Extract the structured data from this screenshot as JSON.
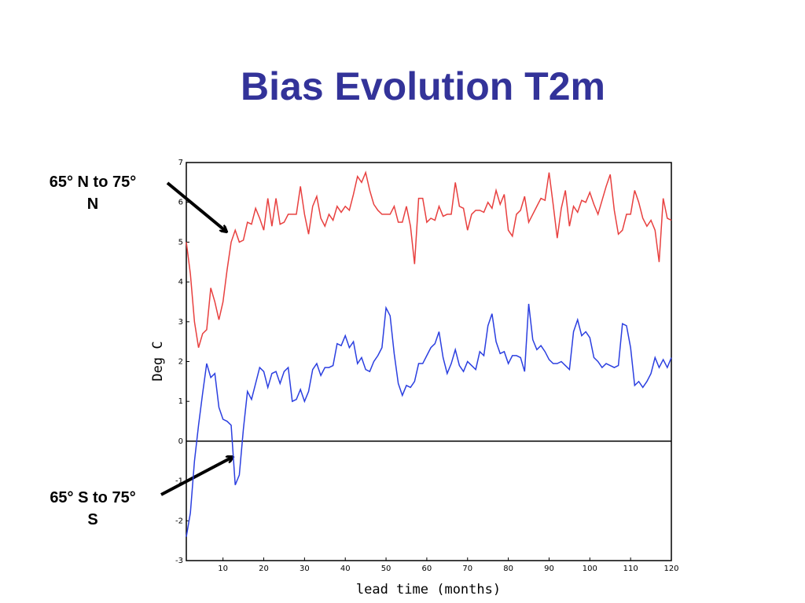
{
  "chart_data": {
    "type": "line",
    "title": "Bias Evolution T2m",
    "xlabel": "lead time (months)",
    "ylabel": "Deg C",
    "xlim": [
      1,
      120
    ],
    "xticks": [
      10,
      20,
      30,
      40,
      50,
      60,
      70,
      80,
      90,
      100,
      110,
      120
    ],
    "ylim": [
      -3,
      7
    ],
    "yticks": [
      -3,
      -2,
      -1,
      0,
      1,
      2,
      3,
      4,
      5,
      6,
      7
    ],
    "reference_line": 0,
    "x": [
      1,
      2,
      3,
      4,
      5,
      6,
      7,
      8,
      9,
      10,
      11,
      12,
      13,
      14,
      15,
      16,
      17,
      18,
      19,
      20,
      21,
      22,
      23,
      24,
      25,
      26,
      27,
      28,
      29,
      30,
      31,
      32,
      33,
      34,
      35,
      36,
      37,
      38,
      39,
      40,
      41,
      42,
      43,
      44,
      45,
      46,
      47,
      48,
      49,
      50,
      51,
      52,
      53,
      54,
      55,
      56,
      57,
      58,
      59,
      60,
      61,
      62,
      63,
      64,
      65,
      66,
      67,
      68,
      69,
      70,
      71,
      72,
      73,
      74,
      75,
      76,
      77,
      78,
      79,
      80,
      81,
      82,
      83,
      84,
      85,
      86,
      87,
      88,
      89,
      90,
      91,
      92,
      93,
      94,
      95,
      96,
      97,
      98,
      99,
      100,
      101,
      102,
      103,
      104,
      105,
      106,
      107,
      108,
      109,
      110,
      111,
      112,
      113,
      114,
      115,
      116,
      117,
      118,
      119,
      120
    ],
    "series": [
      {
        "name": "65° N to 75° N",
        "color": "#e8403f",
        "values": [
          5.0,
          4.2,
          3.0,
          2.35,
          2.7,
          2.8,
          3.85,
          3.5,
          3.05,
          3.5,
          4.3,
          5.0,
          5.3,
          5.0,
          5.05,
          5.5,
          5.45,
          5.85,
          5.6,
          5.3,
          6.1,
          5.4,
          6.1,
          5.45,
          5.5,
          5.7,
          5.7,
          5.7,
          6.4,
          5.7,
          5.2,
          5.9,
          6.15,
          5.6,
          5.4,
          5.7,
          5.55,
          5.9,
          5.75,
          5.9,
          5.8,
          6.2,
          6.65,
          6.5,
          6.75,
          6.3,
          5.95,
          5.8,
          5.7,
          5.7,
          5.7,
          5.9,
          5.5,
          5.5,
          5.9,
          5.4,
          4.45,
          6.1,
          6.1,
          5.5,
          5.6,
          5.55,
          5.9,
          5.65,
          5.7,
          5.7,
          6.5,
          5.9,
          5.85,
          5.3,
          5.7,
          5.8,
          5.8,
          5.75,
          6.0,
          5.85,
          6.3,
          5.95,
          6.2,
          5.3,
          5.15,
          5.7,
          5.8,
          6.15,
          5.5,
          5.7,
          5.9,
          6.1,
          6.05,
          6.75,
          5.95,
          5.1,
          5.85,
          6.3,
          5.4,
          5.9,
          5.75,
          6.05,
          6.0,
          6.25,
          5.95,
          5.7,
          6.05,
          6.4,
          6.7,
          5.8,
          5.2,
          5.3,
          5.7,
          5.7,
          6.3,
          6.0,
          5.6,
          5.4,
          5.55,
          5.3,
          4.5,
          6.1,
          5.6,
          5.55
        ]
      },
      {
        "name": "65° S to 75° S",
        "color": "#2b3fe0",
        "values": [
          -2.4,
          -1.8,
          -0.5,
          0.4,
          1.2,
          1.95,
          1.6,
          1.7,
          0.85,
          0.55,
          0.5,
          0.4,
          -1.1,
          -0.85,
          0.3,
          1.25,
          1.05,
          1.45,
          1.85,
          1.75,
          1.35,
          1.7,
          1.75,
          1.45,
          1.75,
          1.85,
          1.0,
          1.05,
          1.3,
          1.0,
          1.25,
          1.8,
          1.95,
          1.65,
          1.85,
          1.85,
          1.9,
          2.45,
          2.4,
          2.65,
          2.35,
          2.5,
          1.95,
          2.1,
          1.8,
          1.75,
          2.0,
          2.15,
          2.35,
          3.35,
          3.15,
          2.2,
          1.45,
          1.15,
          1.4,
          1.35,
          1.5,
          1.95,
          1.95,
          2.15,
          2.35,
          2.45,
          2.75,
          2.1,
          1.7,
          1.95,
          2.3,
          1.9,
          1.75,
          2.0,
          1.9,
          1.8,
          2.25,
          2.15,
          2.9,
          3.2,
          2.5,
          2.2,
          2.25,
          1.95,
          2.15,
          2.15,
          2.1,
          1.75,
          3.45,
          2.55,
          2.3,
          2.4,
          2.25,
          2.05,
          1.95,
          1.95,
          2.0,
          1.9,
          1.8,
          2.75,
          3.05,
          2.65,
          2.75,
          2.6,
          2.1,
          2.0,
          1.85,
          1.95,
          1.9,
          1.85,
          1.9,
          2.95,
          2.9,
          2.35,
          1.4,
          1.5,
          1.35,
          1.5,
          1.7,
          2.1,
          1.85,
          2.05,
          1.85,
          2.1
        ]
      }
    ]
  }
}
